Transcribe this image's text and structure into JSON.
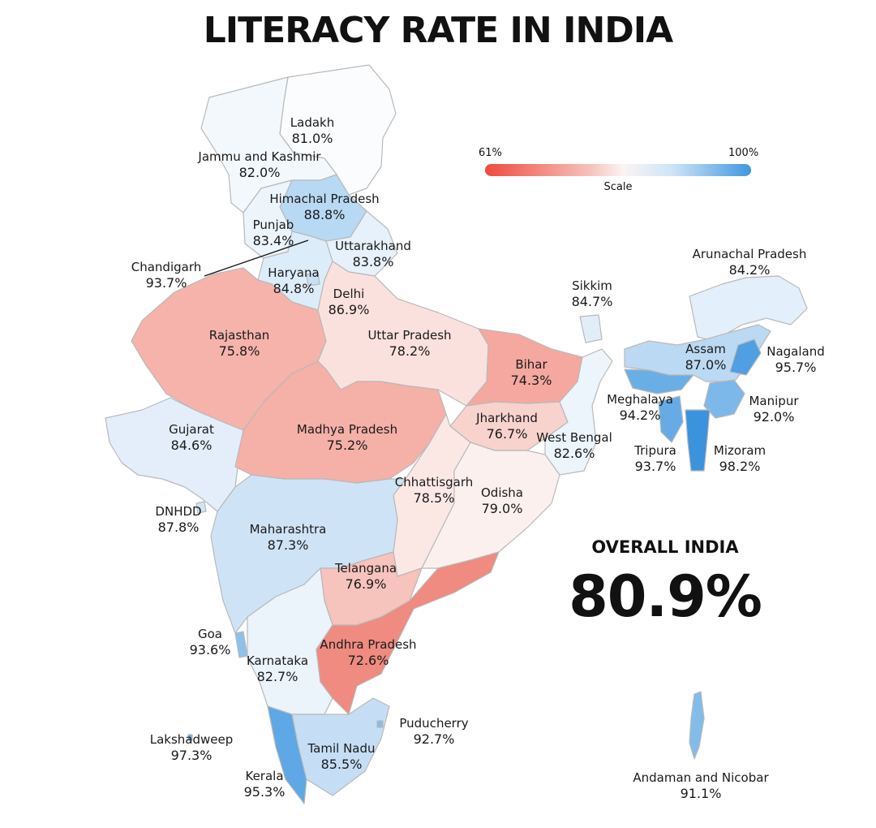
{
  "title": "LITERACY RATE IN INDIA",
  "scale": {
    "min_label": "61%",
    "max_label": "100%",
    "caption": "Scale",
    "min_color": "#ef4a3c",
    "max_color": "#3f97e0"
  },
  "overall": {
    "label": "OVERALL INDIA",
    "value": "80.9%"
  },
  "regions": {
    "ladakh": {
      "name": "Ladakh",
      "value": "81.0%"
    },
    "jk": {
      "name": "Jammu and Kashmir",
      "value": "82.0%"
    },
    "hp": {
      "name": "Himachal Pradesh",
      "value": "88.8%"
    },
    "punjab": {
      "name": "Punjab",
      "value": "83.4%"
    },
    "uttarakhand": {
      "name": "Uttarakhand",
      "value": "83.8%"
    },
    "chandigarh": {
      "name": "Chandigarh",
      "value": "93.7%"
    },
    "haryana": {
      "name": "Haryana",
      "value": "84.8%"
    },
    "delhi": {
      "name": "Delhi",
      "value": "86.9%"
    },
    "rajasthan": {
      "name": "Rajasthan",
      "value": "75.8%"
    },
    "up": {
      "name": "Uttar Pradesh",
      "value": "78.2%"
    },
    "bihar": {
      "name": "Bihar",
      "value": "74.3%"
    },
    "sikkim": {
      "name": "Sikkim",
      "value": "84.7%"
    },
    "arunachal": {
      "name": "Arunachal Pradesh",
      "value": "84.2%"
    },
    "assam": {
      "name": "Assam",
      "value": "87.0%"
    },
    "nagaland": {
      "name": "Nagaland",
      "value": "95.7%"
    },
    "meghalaya": {
      "name": "Meghalaya",
      "value": "94.2%"
    },
    "manipur": {
      "name": "Manipur",
      "value": "92.0%"
    },
    "tripura": {
      "name": "Tripura",
      "value": "93.7%"
    },
    "mizoram": {
      "name": "Mizoram",
      "value": "98.2%"
    },
    "gujarat": {
      "name": "Gujarat",
      "value": "84.6%"
    },
    "mp": {
      "name": "Madhya Pradesh",
      "value": "75.2%"
    },
    "jharkhand": {
      "name": "Jharkhand",
      "value": "76.7%"
    },
    "wb": {
      "name": "West Bengal",
      "value": "82.6%"
    },
    "chhattisgarh": {
      "name": "Chhattisgarh",
      "value": "78.5%"
    },
    "odisha": {
      "name": "Odisha",
      "value": "79.0%"
    },
    "dnhdd": {
      "name": "DNHDD",
      "value": "87.8%"
    },
    "maharashtra": {
      "name": "Maharashtra",
      "value": "87.3%"
    },
    "telangana": {
      "name": "Telangana",
      "value": "76.9%"
    },
    "goa": {
      "name": "Goa",
      "value": "93.6%"
    },
    "karnataka": {
      "name": "Karnataka",
      "value": "82.7%"
    },
    "ap": {
      "name": "Andhra Pradesh",
      "value": "72.6%"
    },
    "puducherry": {
      "name": "Puducherry",
      "value": "92.7%"
    },
    "lakshadweep": {
      "name": "Lakshadweep",
      "value": "97.3%"
    },
    "tn": {
      "name": "Tamil Nadu",
      "value": "85.5%"
    },
    "kerala": {
      "name": "Kerala",
      "value": "95.3%"
    },
    "andaman": {
      "name": "Andaman and Nicobar",
      "value": "91.1%"
    }
  }
}
